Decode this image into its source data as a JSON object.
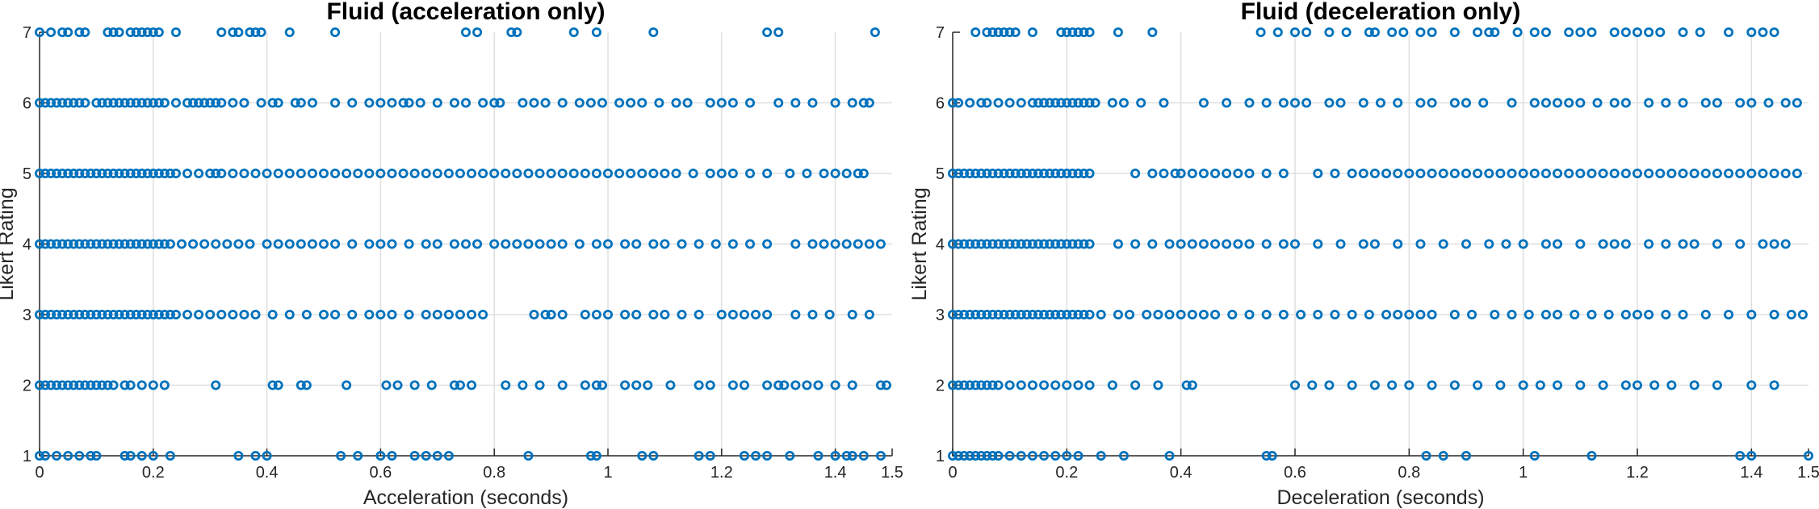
{
  "chart_data": [
    {
      "type": "scatter",
      "title": "Fluid (acceleration only)",
      "xlabel": "Acceleration (seconds)",
      "ylabel": "Likert Rating",
      "xlim": [
        0,
        1.5
      ],
      "ylim": [
        1,
        7
      ],
      "xticks": [
        "0",
        "0.2",
        "0.4",
        "0.6",
        "0.8",
        "1",
        "1.2",
        "1.4",
        "1.5"
      ],
      "yticks": [
        "1",
        "2",
        "3",
        "4",
        "5",
        "6",
        "7"
      ],
      "grid": true,
      "marker": "open-circle",
      "color": "#0072BD",
      "series": [
        {
          "y": 7,
          "x": [
            0,
            0.02,
            0.04,
            0.05,
            0.07,
            0.08,
            0.12,
            0.13,
            0.14,
            0.16,
            0.17,
            0.18,
            0.19,
            0.2,
            0.21,
            0.24,
            0.32,
            0.34,
            0.35,
            0.37,
            0.38,
            0.39,
            0.44,
            0.52,
            0.75,
            0.77,
            0.83,
            0.84,
            0.94,
            0.98,
            1.08,
            1.28,
            1.3,
            1.47
          ]
        },
        {
          "y": 6,
          "x": [
            0,
            0.01,
            0.02,
            0.03,
            0.04,
            0.05,
            0.06,
            0.07,
            0.08,
            0.1,
            0.11,
            0.12,
            0.13,
            0.14,
            0.15,
            0.16,
            0.17,
            0.18,
            0.19,
            0.2,
            0.21,
            0.22,
            0.24,
            0.26,
            0.27,
            0.28,
            0.29,
            0.3,
            0.31,
            0.32,
            0.34,
            0.36,
            0.39,
            0.41,
            0.42,
            0.45,
            0.46,
            0.48,
            0.52,
            0.55,
            0.58,
            0.6,
            0.62,
            0.64,
            0.65,
            0.67,
            0.7,
            0.73,
            0.75,
            0.78,
            0.8,
            0.81,
            0.85,
            0.87,
            0.89,
            0.92,
            0.95,
            0.97,
            0.99,
            1.02,
            1.04,
            1.06,
            1.09,
            1.12,
            1.14,
            1.18,
            1.2,
            1.22,
            1.25,
            1.3,
            1.33,
            1.36,
            1.4,
            1.43,
            1.45,
            1.46
          ]
        },
        {
          "y": 5,
          "x": [
            0,
            0.01,
            0.02,
            0.03,
            0.04,
            0.05,
            0.06,
            0.07,
            0.08,
            0.09,
            0.1,
            0.11,
            0.12,
            0.13,
            0.14,
            0.15,
            0.16,
            0.17,
            0.18,
            0.19,
            0.2,
            0.21,
            0.22,
            0.23,
            0.24,
            0.26,
            0.28,
            0.3,
            0.31,
            0.32,
            0.34,
            0.36,
            0.38,
            0.4,
            0.42,
            0.44,
            0.46,
            0.48,
            0.5,
            0.52,
            0.54,
            0.56,
            0.58,
            0.6,
            0.62,
            0.64,
            0.66,
            0.68,
            0.7,
            0.72,
            0.74,
            0.76,
            0.78,
            0.8,
            0.82,
            0.84,
            0.86,
            0.88,
            0.9,
            0.92,
            0.94,
            0.96,
            0.98,
            1.0,
            1.02,
            1.04,
            1.06,
            1.08,
            1.1,
            1.12,
            1.15,
            1.18,
            1.2,
            1.22,
            1.25,
            1.28,
            1.32,
            1.35,
            1.38,
            1.4,
            1.42,
            1.44,
            1.45
          ]
        },
        {
          "y": 4,
          "x": [
            0,
            0.01,
            0.02,
            0.03,
            0.04,
            0.05,
            0.06,
            0.07,
            0.08,
            0.09,
            0.1,
            0.11,
            0.12,
            0.13,
            0.14,
            0.15,
            0.16,
            0.17,
            0.18,
            0.19,
            0.2,
            0.21,
            0.22,
            0.23,
            0.25,
            0.27,
            0.29,
            0.31,
            0.33,
            0.35,
            0.37,
            0.4,
            0.42,
            0.44,
            0.46,
            0.48,
            0.5,
            0.52,
            0.55,
            0.58,
            0.6,
            0.62,
            0.65,
            0.68,
            0.7,
            0.73,
            0.75,
            0.77,
            0.8,
            0.82,
            0.84,
            0.86,
            0.88,
            0.9,
            0.92,
            0.95,
            0.98,
            1.0,
            1.03,
            1.05,
            1.08,
            1.1,
            1.13,
            1.16,
            1.19,
            1.22,
            1.25,
            1.28,
            1.33,
            1.36,
            1.38,
            1.4,
            1.42,
            1.44,
            1.46,
            1.48
          ]
        },
        {
          "y": 3,
          "x": [
            0,
            0.01,
            0.02,
            0.03,
            0.04,
            0.05,
            0.06,
            0.07,
            0.08,
            0.09,
            0.1,
            0.11,
            0.12,
            0.13,
            0.14,
            0.15,
            0.16,
            0.17,
            0.18,
            0.19,
            0.2,
            0.21,
            0.22,
            0.23,
            0.24,
            0.26,
            0.28,
            0.3,
            0.32,
            0.34,
            0.36,
            0.38,
            0.41,
            0.44,
            0.47,
            0.5,
            0.52,
            0.55,
            0.58,
            0.6,
            0.62,
            0.65,
            0.68,
            0.7,
            0.72,
            0.74,
            0.76,
            0.78,
            0.87,
            0.89,
            0.9,
            0.92,
            0.96,
            0.98,
            1.0,
            1.03,
            1.05,
            1.08,
            1.1,
            1.13,
            1.16,
            1.2,
            1.22,
            1.24,
            1.26,
            1.28,
            1.33,
            1.36,
            1.39,
            1.43,
            1.46
          ]
        },
        {
          "y": 2,
          "x": [
            0,
            0.01,
            0.02,
            0.03,
            0.04,
            0.05,
            0.06,
            0.07,
            0.08,
            0.09,
            0.1,
            0.11,
            0.12,
            0.13,
            0.15,
            0.16,
            0.18,
            0.2,
            0.22,
            0.31,
            0.41,
            0.42,
            0.46,
            0.47,
            0.54,
            0.61,
            0.63,
            0.66,
            0.69,
            0.73,
            0.74,
            0.76,
            0.82,
            0.85,
            0.88,
            0.92,
            0.96,
            0.98,
            0.99,
            1.03,
            1.05,
            1.07,
            1.11,
            1.16,
            1.18,
            1.22,
            1.24,
            1.28,
            1.3,
            1.31,
            1.33,
            1.35,
            1.37,
            1.4,
            1.43,
            1.48,
            1.49
          ]
        },
        {
          "y": 1,
          "x": [
            0,
            0.01,
            0.03,
            0.05,
            0.07,
            0.09,
            0.1,
            0.15,
            0.16,
            0.18,
            0.2,
            0.23,
            0.35,
            0.38,
            0.4,
            0.53,
            0.56,
            0.6,
            0.62,
            0.66,
            0.68,
            0.7,
            0.72,
            0.86,
            0.97,
            0.98,
            1.06,
            1.08,
            1.16,
            1.18,
            1.24,
            1.26,
            1.28,
            1.32,
            1.37,
            1.4,
            1.42,
            1.43,
            1.45,
            1.48
          ]
        }
      ]
    },
    {
      "type": "scatter",
      "title": "Fluid (deceleration only)",
      "xlabel": "Deceleration (seconds)",
      "ylabel": "Likert Rating",
      "xlim": [
        0,
        1.5
      ],
      "ylim": [
        1,
        7
      ],
      "xticks": [
        "0",
        "0.2",
        "0.4",
        "0.6",
        "0.8",
        "1",
        "1.2",
        "1.4",
        "1.5"
      ],
      "yticks": [
        "1",
        "2",
        "3",
        "4",
        "5",
        "6",
        "7"
      ],
      "grid": true,
      "marker": "open-circle",
      "color": "#0072BD",
      "series": [
        {
          "y": 7,
          "x": [
            0.04,
            0.06,
            0.07,
            0.08,
            0.09,
            0.1,
            0.11,
            0.14,
            0.19,
            0.2,
            0.21,
            0.22,
            0.23,
            0.24,
            0.29,
            0.35,
            0.54,
            0.57,
            0.6,
            0.62,
            0.66,
            0.69,
            0.73,
            0.74,
            0.77,
            0.79,
            0.82,
            0.84,
            0.88,
            0.92,
            0.94,
            0.95,
            0.99,
            1.02,
            1.04,
            1.08,
            1.1,
            1.12,
            1.16,
            1.18,
            1.2,
            1.22,
            1.24,
            1.28,
            1.31,
            1.36,
            1.4,
            1.42,
            1.44
          ]
        },
        {
          "y": 6,
          "x": [
            0,
            0.01,
            0.03,
            0.05,
            0.06,
            0.08,
            0.1,
            0.12,
            0.14,
            0.15,
            0.16,
            0.17,
            0.18,
            0.19,
            0.2,
            0.21,
            0.22,
            0.23,
            0.24,
            0.25,
            0.28,
            0.3,
            0.33,
            0.37,
            0.44,
            0.48,
            0.52,
            0.55,
            0.58,
            0.6,
            0.62,
            0.66,
            0.68,
            0.72,
            0.75,
            0.78,
            0.82,
            0.84,
            0.88,
            0.9,
            0.93,
            0.98,
            1.02,
            1.04,
            1.06,
            1.08,
            1.1,
            1.13,
            1.16,
            1.18,
            1.22,
            1.25,
            1.28,
            1.32,
            1.34,
            1.38,
            1.4,
            1.43,
            1.46,
            1.48
          ]
        },
        {
          "y": 5,
          "x": [
            0,
            0.01,
            0.02,
            0.03,
            0.04,
            0.05,
            0.06,
            0.07,
            0.08,
            0.09,
            0.1,
            0.11,
            0.12,
            0.13,
            0.14,
            0.15,
            0.16,
            0.17,
            0.18,
            0.19,
            0.2,
            0.21,
            0.22,
            0.23,
            0.24,
            0.32,
            0.35,
            0.37,
            0.39,
            0.4,
            0.42,
            0.44,
            0.46,
            0.48,
            0.5,
            0.52,
            0.55,
            0.58,
            0.64,
            0.67,
            0.7,
            0.72,
            0.74,
            0.76,
            0.78,
            0.8,
            0.82,
            0.84,
            0.86,
            0.88,
            0.9,
            0.92,
            0.94,
            0.96,
            0.98,
            1.0,
            1.02,
            1.04,
            1.06,
            1.08,
            1.1,
            1.12,
            1.14,
            1.16,
            1.18,
            1.2,
            1.22,
            1.24,
            1.26,
            1.28,
            1.3,
            1.32,
            1.34,
            1.36,
            1.38,
            1.4,
            1.42,
            1.44,
            1.46,
            1.48
          ]
        },
        {
          "y": 4,
          "x": [
            0,
            0.01,
            0.02,
            0.03,
            0.04,
            0.05,
            0.06,
            0.07,
            0.08,
            0.09,
            0.1,
            0.11,
            0.12,
            0.13,
            0.14,
            0.15,
            0.16,
            0.17,
            0.18,
            0.19,
            0.2,
            0.21,
            0.22,
            0.23,
            0.24,
            0.29,
            0.32,
            0.35,
            0.38,
            0.4,
            0.42,
            0.44,
            0.46,
            0.48,
            0.5,
            0.52,
            0.55,
            0.58,
            0.6,
            0.64,
            0.68,
            0.72,
            0.74,
            0.78,
            0.82,
            0.86,
            0.9,
            0.94,
            0.97,
            1.0,
            1.04,
            1.06,
            1.1,
            1.14,
            1.16,
            1.18,
            1.22,
            1.25,
            1.28,
            1.3,
            1.34,
            1.38,
            1.42,
            1.44,
            1.46
          ]
        },
        {
          "y": 3,
          "x": [
            0,
            0.01,
            0.02,
            0.03,
            0.04,
            0.05,
            0.06,
            0.07,
            0.08,
            0.09,
            0.1,
            0.11,
            0.12,
            0.13,
            0.14,
            0.15,
            0.16,
            0.17,
            0.18,
            0.19,
            0.2,
            0.21,
            0.22,
            0.23,
            0.24,
            0.26,
            0.29,
            0.31,
            0.34,
            0.36,
            0.38,
            0.4,
            0.42,
            0.44,
            0.46,
            0.49,
            0.52,
            0.55,
            0.58,
            0.61,
            0.64,
            0.67,
            0.7,
            0.73,
            0.76,
            0.78,
            0.8,
            0.82,
            0.84,
            0.88,
            0.91,
            0.95,
            0.98,
            1.01,
            1.04,
            1.06,
            1.09,
            1.12,
            1.15,
            1.18,
            1.2,
            1.22,
            1.25,
            1.28,
            1.32,
            1.36,
            1.4,
            1.44,
            1.47,
            1.49
          ]
        },
        {
          "y": 2,
          "x": [
            0,
            0.01,
            0.02,
            0.03,
            0.04,
            0.05,
            0.06,
            0.07,
            0.08,
            0.1,
            0.12,
            0.14,
            0.16,
            0.18,
            0.2,
            0.22,
            0.24,
            0.28,
            0.32,
            0.36,
            0.41,
            0.42,
            0.6,
            0.63,
            0.66,
            0.7,
            0.74,
            0.77,
            0.8,
            0.84,
            0.88,
            0.92,
            0.96,
            1.0,
            1.03,
            1.06,
            1.1,
            1.14,
            1.18,
            1.2,
            1.23,
            1.26,
            1.3,
            1.34,
            1.4,
            1.44
          ]
        },
        {
          "y": 1,
          "x": [
            0,
            0.01,
            0.02,
            0.03,
            0.04,
            0.05,
            0.06,
            0.07,
            0.08,
            0.1,
            0.12,
            0.14,
            0.16,
            0.18,
            0.2,
            0.22,
            0.26,
            0.3,
            0.38,
            0.55,
            0.56,
            0.83,
            0.86,
            0.9,
            1.02,
            1.12,
            1.38,
            1.4,
            1.5
          ]
        }
      ]
    }
  ]
}
